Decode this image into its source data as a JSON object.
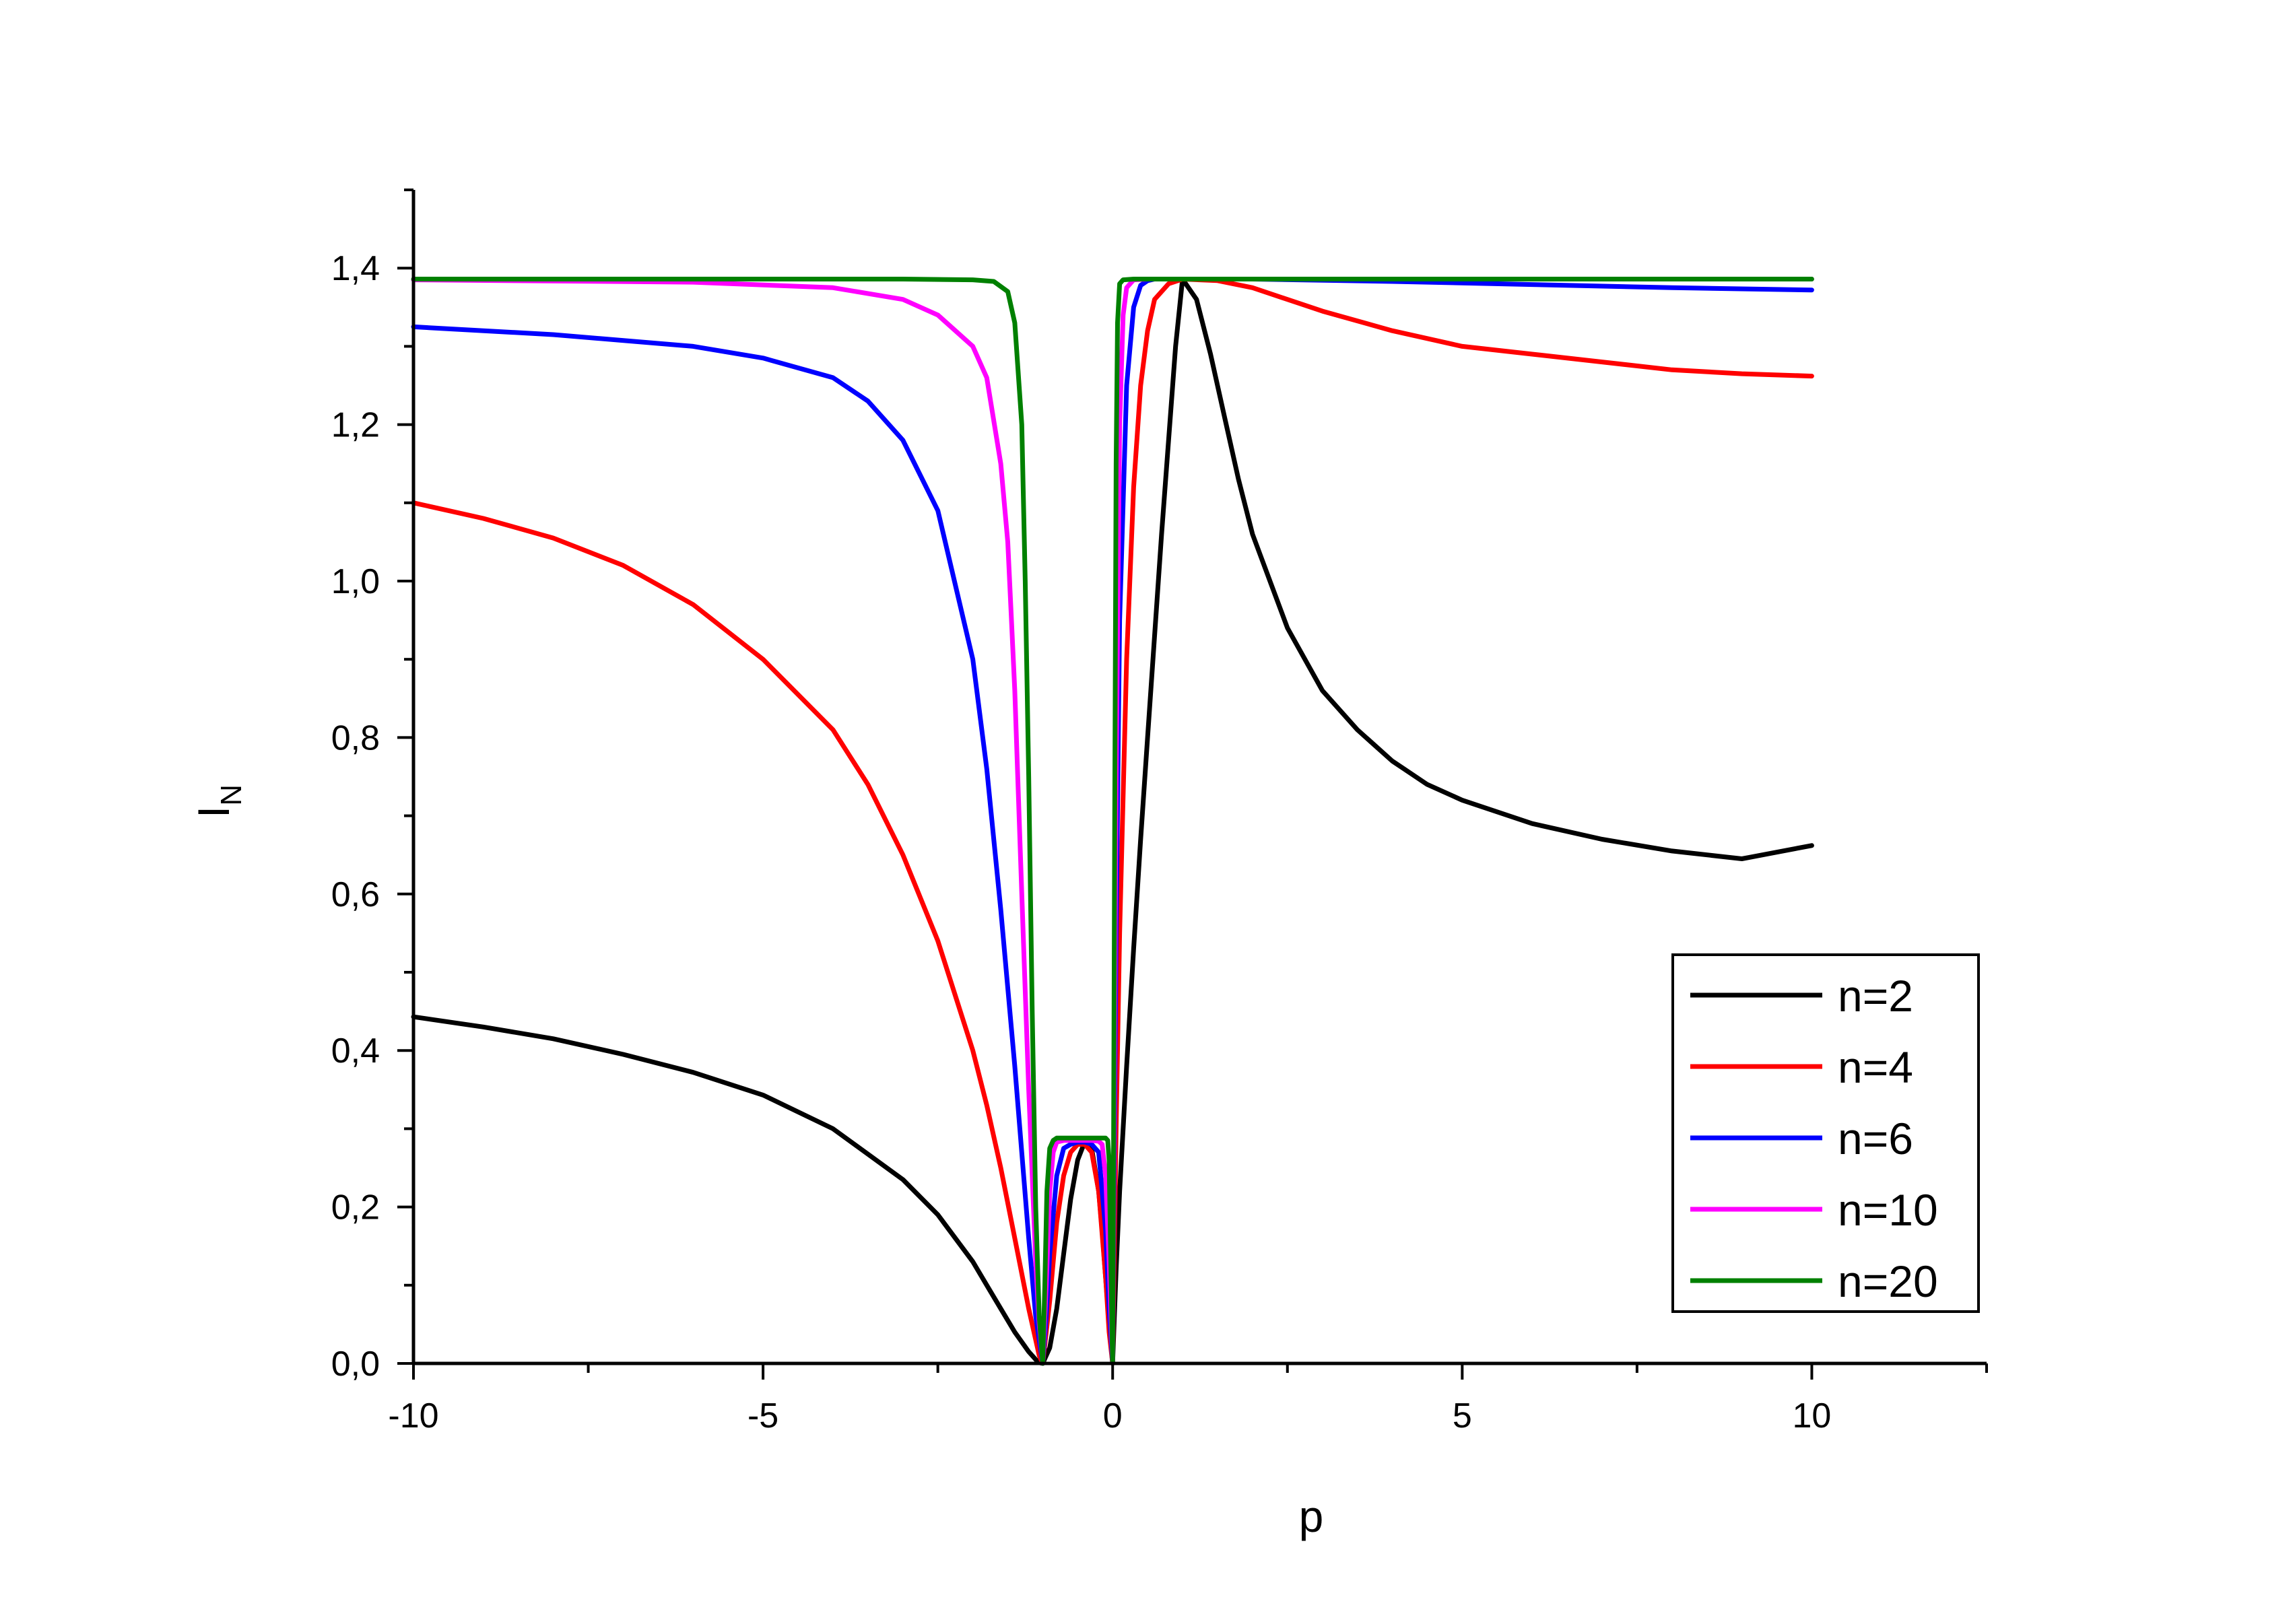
{
  "chart_data": {
    "type": "line",
    "title": "",
    "xlabel": "p",
    "ylabel": {
      "main": "I",
      "sub": "N"
    },
    "xlim": [
      -10,
      12.5
    ],
    "ylim": [
      0,
      1.5
    ],
    "x_ticks": [
      -10,
      -5,
      0,
      5,
      10
    ],
    "x_tick_labels": [
      "-10",
      "-5",
      "0",
      "5",
      "10"
    ],
    "y_ticks": [
      0,
      0.2,
      0.4,
      0.6,
      0.8,
      1.0,
      1.2,
      1.4
    ],
    "y_tick_labels": [
      "0,0",
      "0,2",
      "0,4",
      "0,6",
      "0,8",
      "1,0",
      "1,2",
      "1,4"
    ],
    "grid": false,
    "legend_position": "bottom-right",
    "series": [
      {
        "name": "n=2",
        "color": "#000000",
        "x": [
          -10,
          -9,
          -8,
          -7,
          -6,
          -5,
          -4,
          -3,
          -2.5,
          -2,
          -1.8,
          -1.6,
          -1.4,
          -1.2,
          -1.1,
          -1.05,
          -1,
          -0.9,
          -0.8,
          -0.7,
          -0.6,
          -0.5,
          -0.4,
          -0.35,
          -0.3,
          -0.2,
          -0.15,
          -0.1,
          -0.05,
          0,
          0.05,
          0.1,
          0.2,
          0.3,
          0.4,
          0.5,
          0.6,
          0.7,
          0.8,
          0.9,
          1,
          1.2,
          1.4,
          1.6,
          1.8,
          2,
          2.5,
          3,
          3.5,
          4,
          4.5,
          5,
          6,
          7,
          8,
          9,
          10
        ],
        "y": [
          0.443,
          0.43,
          0.415,
          0.395,
          0.372,
          0.343,
          0.3,
          0.235,
          0.19,
          0.13,
          0.1,
          0.07,
          0.04,
          0.015,
          0.005,
          0.001,
          0,
          0.02,
          0.07,
          0.14,
          0.21,
          0.26,
          0.283,
          0.285,
          0.275,
          0.22,
          0.17,
          0.11,
          0.05,
          0,
          0.12,
          0.22,
          0.38,
          0.53,
          0.67,
          0.8,
          0.93,
          1.06,
          1.18,
          1.3,
          1.386,
          1.36,
          1.29,
          1.21,
          1.13,
          1.06,
          0.94,
          0.86,
          0.81,
          0.77,
          0.74,
          0.72,
          0.69,
          0.67,
          0.655,
          0.645,
          0.662
        ]
      },
      {
        "name": "n=4",
        "color": "#ff0000",
        "x": [
          -10,
          -9,
          -8,
          -7,
          -6,
          -5,
          -4,
          -3.5,
          -3,
          -2.5,
          -2,
          -1.8,
          -1.6,
          -1.4,
          -1.2,
          -1.1,
          -1.05,
          -1,
          -0.9,
          -0.8,
          -0.7,
          -0.6,
          -0.5,
          -0.4,
          -0.3,
          -0.2,
          -0.1,
          -0.05,
          0,
          0.05,
          0.1,
          0.2,
          0.3,
          0.4,
          0.5,
          0.6,
          0.8,
          1,
          1.5,
          2,
          3,
          4,
          5,
          6,
          7,
          8,
          9,
          10
        ],
        "y": [
          1.1,
          1.08,
          1.055,
          1.02,
          0.97,
          0.9,
          0.81,
          0.74,
          0.65,
          0.54,
          0.4,
          0.33,
          0.25,
          0.16,
          0.07,
          0.03,
          0.01,
          0,
          0.08,
          0.18,
          0.24,
          0.27,
          0.28,
          0.28,
          0.27,
          0.22,
          0.11,
          0.04,
          0,
          0.3,
          0.55,
          0.9,
          1.12,
          1.25,
          1.32,
          1.36,
          1.38,
          1.386,
          1.384,
          1.375,
          1.345,
          1.32,
          1.3,
          1.29,
          1.28,
          1.27,
          1.265,
          1.262
        ]
      },
      {
        "name": "n=6",
        "color": "#0000ff",
        "x": [
          -10,
          -8,
          -6,
          -5,
          -4,
          -3.5,
          -3,
          -2.5,
          -2,
          -1.8,
          -1.6,
          -1.4,
          -1.2,
          -1.1,
          -1,
          -0.95,
          -0.9,
          -0.8,
          -0.7,
          -0.6,
          -0.5,
          -0.4,
          -0.3,
          -0.2,
          -0.1,
          -0.05,
          0,
          0.05,
          0.1,
          0.2,
          0.3,
          0.4,
          0.5,
          0.6,
          1,
          2,
          4,
          6,
          8,
          10
        ],
        "y": [
          1.325,
          1.315,
          1.3,
          1.285,
          1.26,
          1.23,
          1.18,
          1.09,
          0.9,
          0.76,
          0.58,
          0.38,
          0.16,
          0.06,
          0,
          0.06,
          0.14,
          0.24,
          0.275,
          0.28,
          0.283,
          0.283,
          0.28,
          0.27,
          0.17,
          0.07,
          0,
          0.55,
          0.95,
          1.25,
          1.35,
          1.378,
          1.384,
          1.386,
          1.386,
          1.386,
          1.383,
          1.379,
          1.375,
          1.372
        ]
      },
      {
        "name": "n=10",
        "color": "#ff00ff",
        "x": [
          -10,
          -6,
          -4,
          -3,
          -2.5,
          -2,
          -1.8,
          -1.6,
          -1.5,
          -1.4,
          -1.3,
          -1.2,
          -1.1,
          -1.05,
          -1,
          -0.95,
          -0.9,
          -0.85,
          -0.8,
          -0.7,
          -0.5,
          -0.3,
          -0.2,
          -0.15,
          -0.1,
          -0.05,
          -0.02,
          0,
          0.02,
          0.05,
          0.1,
          0.15,
          0.2,
          0.3,
          0.5,
          1,
          5,
          10
        ],
        "y": [
          1.385,
          1.382,
          1.375,
          1.36,
          1.34,
          1.3,
          1.26,
          1.15,
          1.05,
          0.86,
          0.6,
          0.35,
          0.13,
          0.05,
          0,
          0.1,
          0.22,
          0.27,
          0.283,
          0.285,
          0.285,
          0.285,
          0.284,
          0.28,
          0.24,
          0.13,
          0.05,
          0,
          0.3,
          0.75,
          1.2,
          1.34,
          1.375,
          1.385,
          1.386,
          1.386,
          1.386,
          1.386
        ]
      },
      {
        "name": "n=20",
        "color": "#008000",
        "x": [
          -10,
          -5,
          -3,
          -2,
          -1.7,
          -1.5,
          -1.4,
          -1.3,
          -1.25,
          -1.2,
          -1.15,
          -1.1,
          -1.05,
          -1,
          -0.97,
          -0.94,
          -0.9,
          -0.85,
          -0.8,
          -0.5,
          -0.2,
          -0.1,
          -0.07,
          -0.05,
          -0.03,
          -0.01,
          0,
          0.01,
          0.03,
          0.05,
          0.07,
          0.1,
          0.15,
          0.3,
          1,
          5,
          10
        ],
        "y": [
          1.386,
          1.386,
          1.386,
          1.385,
          1.383,
          1.37,
          1.33,
          1.2,
          1.0,
          0.75,
          0.45,
          0.2,
          0.06,
          0,
          0.1,
          0.22,
          0.275,
          0.285,
          0.288,
          0.288,
          0.288,
          0.288,
          0.285,
          0.26,
          0.15,
          0.04,
          0,
          0.2,
          0.7,
          1.15,
          1.33,
          1.38,
          1.385,
          1.386,
          1.386,
          1.386,
          1.386
        ]
      }
    ]
  }
}
